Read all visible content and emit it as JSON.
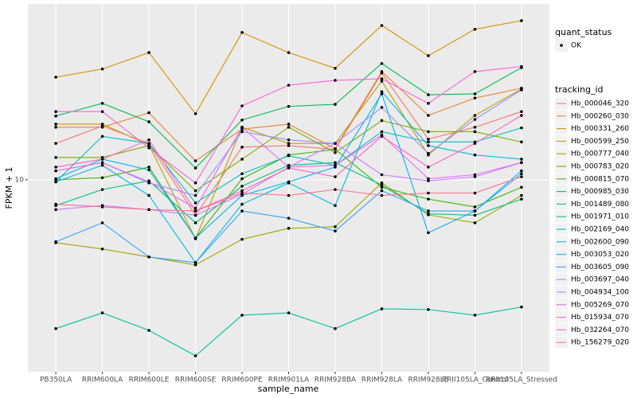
{
  "chart_data": {
    "type": "line",
    "xlabel": "sample_name",
    "ylabel": "FPKM + 1",
    "categories": [
      "PB350LA",
      "RRIM600LA",
      "RRIM600LE",
      "RRIM600SE",
      "RRIM600PE",
      "RRIM901LA",
      "RRIM928BA",
      "RRIM928LA",
      "RRIM928LE",
      "RRII105LA_Control",
      "RRII105LA_Stressed"
    ],
    "ylim": [
      1.57,
      54.5
    ],
    "yticks": [
      10
    ],
    "log_y": true,
    "grid": true,
    "point_color": "#000000",
    "shape_legend": {
      "title": "quant_status",
      "labels": [
        "OK"
      ]
    },
    "legend_title": "tracking_id",
    "series": [
      {
        "name": "Hb_000046_320",
        "color": "#F8766D",
        "values": [
          14.2,
          16.8,
          14.2,
          7.1,
          13.7,
          13.9,
          13.4,
          28.0,
          14.8,
          16.6,
          19.3
        ]
      },
      {
        "name": "Hb_000260_030",
        "color": "#EA8331",
        "values": [
          16.6,
          16.6,
          19.1,
          12.0,
          16.3,
          17.1,
          13.5,
          28.4,
          18.6,
          22.0,
          24.2
        ]
      },
      {
        "name": "Hb_000331_260",
        "color": "#D89000",
        "values": [
          26.9,
          29.1,
          34.1,
          18.9,
          41.4,
          34.1,
          29.3,
          44.3,
          33.1,
          42.7,
          46.4
        ]
      },
      {
        "name": "Hb_000599_250",
        "color": "#C09B00",
        "values": [
          17.1,
          17.1,
          14.0,
          5.66,
          16.6,
          14.2,
          14.2,
          25.9,
          12.7,
          18.6,
          24.0
        ]
      },
      {
        "name": "Hb_000777_040",
        "color": "#A3A500",
        "values": [
          5.45,
          5.13,
          4.75,
          4.4,
          5.63,
          6.26,
          6.36,
          9.7,
          7.13,
          6.6,
          8.6
        ]
      },
      {
        "name": "Hb_000783_020",
        "color": "#7CAE00",
        "values": [
          12.4,
          12.4,
          13.9,
          9.0,
          12.2,
          16.6,
          13.0,
          17.7,
          15.9,
          15.9,
          14.4
        ]
      },
      {
        "name": "Hb_000815_070",
        "color": "#39B600",
        "values": [
          10.0,
          10.2,
          11.3,
          5.7,
          10.1,
          12.7,
          13.4,
          9.3,
          8.3,
          7.7,
          9.3
        ]
      },
      {
        "name": "Hb_000985_030",
        "color": "#00BB4E",
        "values": [
          18.5,
          20.9,
          17.5,
          11.2,
          17.8,
          20.3,
          20.7,
          30.7,
          22.7,
          22.9,
          29.5
        ]
      },
      {
        "name": "Hb_001489_080",
        "color": "#00BF7D",
        "values": [
          7.8,
          9.1,
          9.9,
          6.6,
          9.4,
          11.5,
          11.8,
          9.5,
          7.2,
          7.1,
          8.3
        ]
      },
      {
        "name": "Hb_001971_010",
        "color": "#00C1A3",
        "values": [
          2.38,
          2.77,
          2.34,
          1.83,
          2.71,
          2.77,
          2.38,
          2.88,
          2.86,
          2.71,
          2.93
        ]
      },
      {
        "name": "Hb_002169_040",
        "color": "#00BFC4",
        "values": [
          9.8,
          15.2,
          14.2,
          8.0,
          10.6,
          12.6,
          11.5,
          15.9,
          14.4,
          14.4,
          16.5
        ]
      },
      {
        "name": "Hb_002600_090",
        "color": "#00BAE0",
        "values": [
          9.8,
          11.5,
          8.6,
          4.5,
          7.9,
          9.7,
          7.8,
          23.4,
          13.9,
          12.7,
          12.2
        ]
      },
      {
        "name": "Hb_003053_020",
        "color": "#00B0F6",
        "values": [
          10.1,
          12.2,
          11.0,
          5.7,
          8.6,
          9.8,
          11.3,
          22.9,
          6.0,
          7.4,
          10.9
        ]
      },
      {
        "name": "Hb_003605_090",
        "color": "#35A2FF",
        "values": [
          5.5,
          6.6,
          4.75,
          4.5,
          7.4,
          6.9,
          6.1,
          9.0,
          7.4,
          7.4,
          10.6
        ]
      },
      {
        "name": "Hb_003697_040",
        "color": "#9590FF",
        "values": [
          10.9,
          11.8,
          9.7,
          8.6,
          15.9,
          14.7,
          14.2,
          20.1,
          12.9,
          17.9,
          23.8
        ]
      },
      {
        "name": "Hb_004934_100",
        "color": "#C77CFF",
        "values": [
          7.5,
          7.8,
          7.5,
          7.1,
          8.7,
          11.3,
          14.2,
          10.5,
          9.9,
          10.3,
          11.8
        ]
      },
      {
        "name": "Hb_005269_070",
        "color": "#E76BF3",
        "values": [
          10.9,
          11.8,
          9.8,
          7.6,
          16.6,
          11.3,
          11.5,
          15.4,
          10.1,
          10.5,
          11.8
        ]
      },
      {
        "name": "Hb_015934_070",
        "color": "#FA62DB",
        "values": [
          19.3,
          19.3,
          13.6,
          9.7,
          20.4,
          24.9,
          26.1,
          26.5,
          20.9,
          28.4,
          29.8
        ]
      },
      {
        "name": "Hb_032264_070",
        "color": "#FF62BC",
        "values": [
          11.3,
          12.2,
          14.7,
          7.4,
          9.0,
          11.2,
          10.3,
          15.2,
          11.3,
          14.2,
          18.6
        ]
      },
      {
        "name": "Hb_156279_020",
        "color": "#FF6C91",
        "values": [
          7.9,
          7.7,
          7.5,
          7.4,
          8.8,
          8.6,
          9.1,
          8.6,
          8.8,
          8.8,
          10.3
        ]
      }
    ]
  }
}
